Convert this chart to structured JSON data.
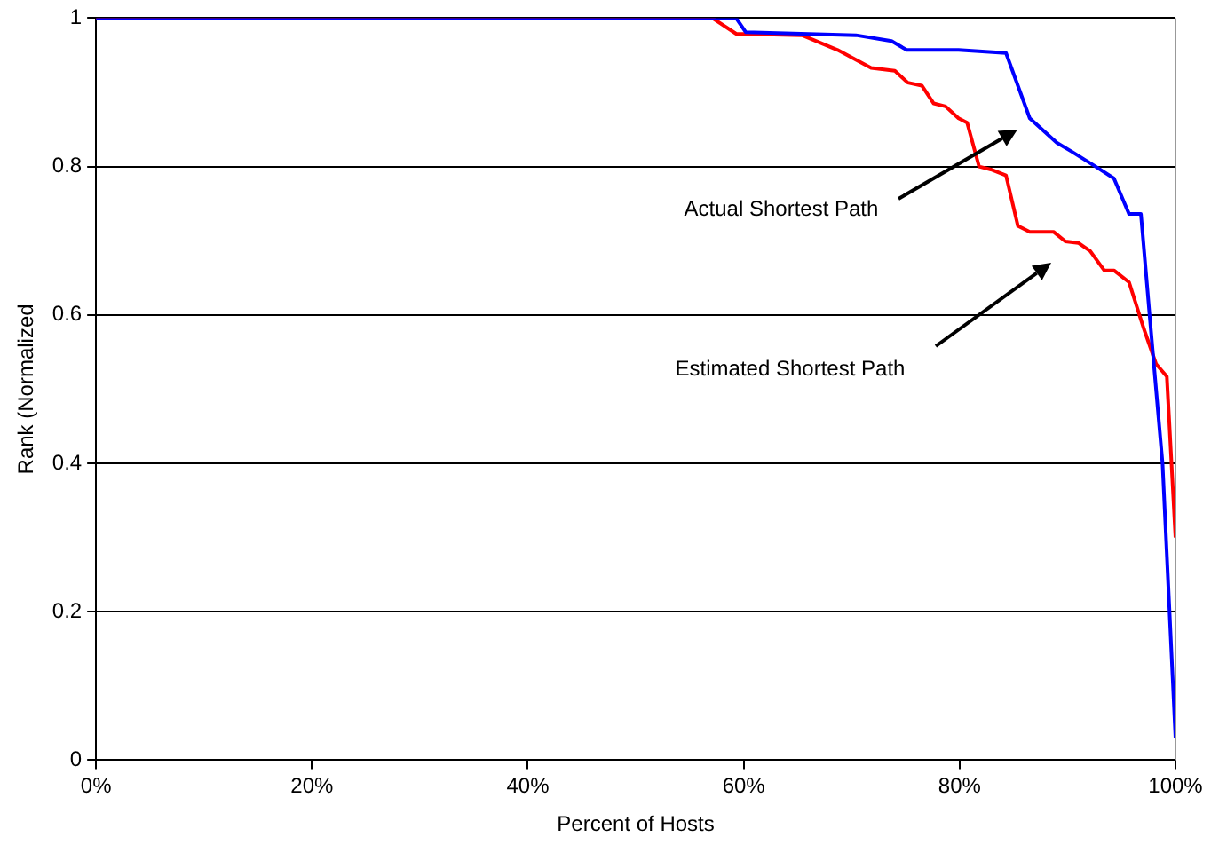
{
  "chart_data": {
    "type": "line",
    "xlabel": "Percent of Hosts",
    "ylabel": "Rank (Normalized",
    "xlim": [
      0,
      100
    ],
    "ylim": [
      0,
      1
    ],
    "xticks": [
      {
        "value": 0,
        "label": "0%"
      },
      {
        "value": 20,
        "label": "20%"
      },
      {
        "value": 40,
        "label": "40%"
      },
      {
        "value": 60,
        "label": "60%"
      },
      {
        "value": 80,
        "label": "80%"
      },
      {
        "value": 100,
        "label": "100%"
      }
    ],
    "yticks": [
      0,
      0.2,
      0.4,
      0.6,
      0.8,
      1
    ],
    "grid": "y",
    "legend": false,
    "marker": "none",
    "line_style": "solid",
    "series": [
      {
        "color": "#0000ff",
        "x": [
          0,
          59.3,
          60.2,
          70.4,
          73.7,
          75.1,
          79.9,
          84.3,
          86.5,
          89,
          90.4,
          92.6,
          94.3,
          95.7,
          96.8,
          97.6,
          98.8,
          100
        ],
        "values": [
          1,
          1,
          0.981,
          0.977,
          0.969,
          0.957,
          0.957,
          0.953,
          0.865,
          0.832,
          0.82,
          0.8,
          0.784,
          0.736,
          0.736,
          0.6,
          0.4,
          0.03
        ]
      },
      {
        "color": "#ff0000",
        "x": [
          0,
          57.1,
          59.3,
          65.4,
          68.7,
          71.8,
          74,
          75.2,
          76.5,
          77.6,
          78.7,
          79.9,
          80.7,
          81.8,
          82.9,
          84.3,
          85.4,
          86.5,
          88.7,
          89.8,
          91,
          92.1,
          93.4,
          94.3,
          95.7,
          97.1,
          98.2,
          99.2,
          100
        ],
        "values": [
          1,
          1,
          0.979,
          0.977,
          0.957,
          0.933,
          0.929,
          0.913,
          0.909,
          0.885,
          0.881,
          0.865,
          0.859,
          0.8,
          0.796,
          0.788,
          0.72,
          0.712,
          0.712,
          0.699,
          0.697,
          0.686,
          0.66,
          0.66,
          0.644,
          0.58,
          0.534,
          0.517,
          0.3
        ]
      }
    ],
    "annotations": [
      "Actual Shortest Path",
      "Estimated Shortest Path"
    ]
  }
}
